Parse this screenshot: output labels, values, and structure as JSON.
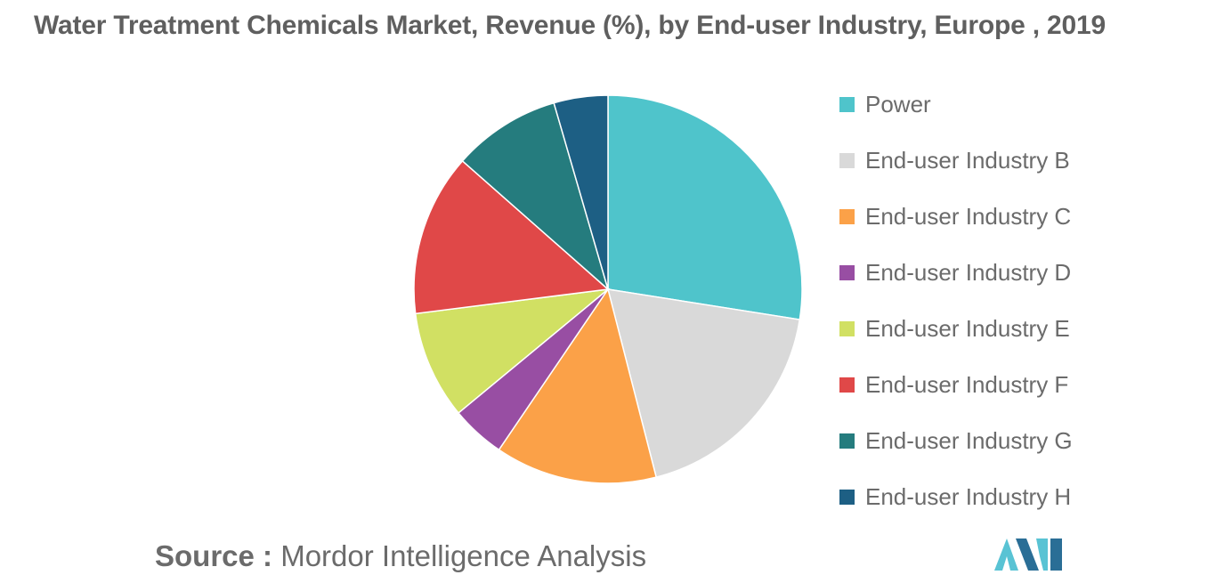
{
  "title": "Water Treatment Chemicals Market, Revenue (%), by End-user Industry, Europe , 2019",
  "source": {
    "prefix": "Source :",
    "text": "Mordor Intelligence Analysis"
  },
  "chart_data": {
    "type": "pie",
    "title": "Water Treatment Chemicals Market, Revenue (%), by End-user Industry, Europe , 2019",
    "legend_position": "right",
    "start_angle_deg": 0,
    "direction": "clockwise",
    "slices": [
      {
        "label": "Power",
        "value": 27.5,
        "color": "#4fc4cb"
      },
      {
        "label": "End-user Industry B",
        "value": 18.5,
        "color": "#d9d9d9"
      },
      {
        "label": "End-user Industry C",
        "value": 13.5,
        "color": "#fba148"
      },
      {
        "label": "End-user Industry D",
        "value": 4.5,
        "color": "#984ea3"
      },
      {
        "label": "End-user Industry E",
        "value": 9.0,
        "color": "#d1e063"
      },
      {
        "label": "End-user Industry F",
        "value": 13.5,
        "color": "#e04848"
      },
      {
        "label": "End-user Industry G",
        "value": 9.0,
        "color": "#257c7e"
      },
      {
        "label": "End-user Industry H",
        "value": 4.5,
        "color": "#1d5f84"
      }
    ]
  },
  "logo": {
    "colors": [
      "#59c3d4",
      "#2a6e96"
    ]
  }
}
